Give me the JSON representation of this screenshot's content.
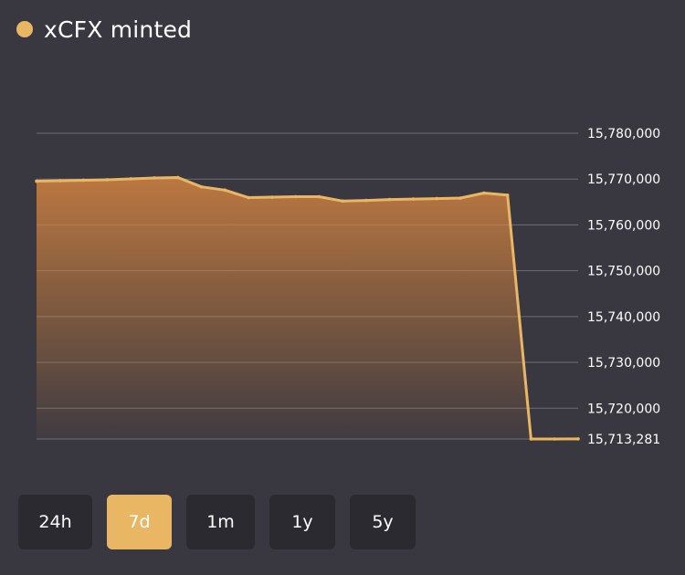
{
  "header": {
    "title": "xCFX minted",
    "dot_color": "#E9B764"
  },
  "ranges": [
    {
      "label": "24h",
      "active": false
    },
    {
      "label": "7d",
      "active": true
    },
    {
      "label": "1m",
      "active": false
    },
    {
      "label": "1y",
      "active": false
    },
    {
      "label": "5y",
      "active": false
    }
  ],
  "colors": {
    "accent": "#E9B764",
    "background": "#393841",
    "button": "#2B2A31",
    "grid": "#6E6D74"
  },
  "chart_data": {
    "type": "area",
    "title": "xCFX minted",
    "xlabel": "",
    "ylabel": "",
    "ylim": [
      15713281,
      15780000
    ],
    "grid": true,
    "y_axis_position": "right",
    "y_ticks": [
      15713281,
      15720000,
      15730000,
      15740000,
      15750000,
      15760000,
      15770000,
      15780000
    ],
    "y_tick_labels": [
      "15,713,281",
      "15,720,000",
      "15,730,000",
      "15,740,000",
      "15,750,000",
      "15,760,000",
      "15,770,000",
      "15,780,000"
    ],
    "series": [
      {
        "values": [
          15769550,
          15769650,
          15769750,
          15769850,
          15770050,
          15770250,
          15770350,
          15768300,
          15767600,
          15765950,
          15766050,
          15766150,
          15766150,
          15765200,
          15765350,
          15765550,
          15765650,
          15765750,
          15765850,
          15766950,
          15766500,
          15713281,
          15713281,
          15713300
        ]
      }
    ]
  }
}
